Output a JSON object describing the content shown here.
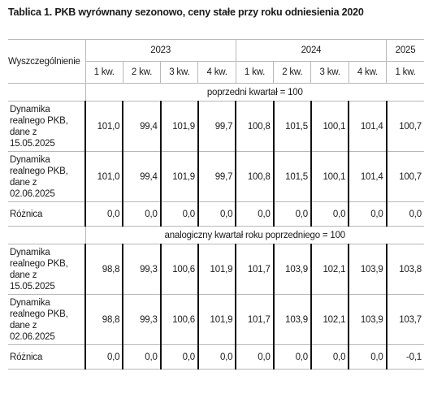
{
  "title": "Tablica 1. PKB wyrównany sezonowo, ceny stałe przy roku odniesienia 2020",
  "table": {
    "row_header": "Wyszczególnienie",
    "years": [
      {
        "year": "2023",
        "quarters": [
          "1 kw.",
          "2 kw.",
          "3 kw.",
          "4 kw."
        ]
      },
      {
        "year": "2024",
        "quarters": [
          "1 kw.",
          "2 kw.",
          "3 kw.",
          "4 kw."
        ]
      },
      {
        "year": "2025",
        "quarters": [
          "1 kw."
        ]
      }
    ],
    "sections": [
      {
        "heading": "poprzedni kwartał = 100",
        "rows": [
          {
            "label": "Dynamika realnego PKB, dane z 15.05.2025",
            "values": [
              "101,0",
              "99,4",
              "101,9",
              "99,7",
              "100,8",
              "101,5",
              "100,1",
              "101,4",
              "100,7"
            ]
          },
          {
            "label": "Dynamika realnego PKB, dane z 02.06.2025",
            "values": [
              "101,0",
              "99,4",
              "101,9",
              "99,7",
              "100,8",
              "101,5",
              "100,1",
              "101,4",
              "100,7"
            ]
          },
          {
            "label": "Różnica",
            "values": [
              "0,0",
              "0,0",
              "0,0",
              "0,0",
              "0,0",
              "0,0",
              "0,0",
              "0,0",
              "0,0"
            ]
          }
        ]
      },
      {
        "heading": "analogiczny kwartał roku poprzedniego = 100",
        "rows": [
          {
            "label": "Dynamika realnego PKB, dane z 15.05.2025",
            "values": [
              "98,8",
              "99,3",
              "100,6",
              "101,9",
              "101,7",
              "103,9",
              "102,1",
              "103,9",
              "103,8"
            ]
          },
          {
            "label": "Dynamika realnego PKB, dane z 02.06.2025",
            "values": [
              "98,8",
              "99,3",
              "100,6",
              "101,9",
              "101,7",
              "103,9",
              "102,1",
              "103,9",
              "103,7"
            ]
          },
          {
            "label": "Różnica",
            "values": [
              "0,0",
              "0,0",
              "0,0",
              "0,0",
              "0,0",
              "0,0",
              "0,0",
              "0,0",
              "-0,1"
            ]
          }
        ]
      }
    ]
  }
}
